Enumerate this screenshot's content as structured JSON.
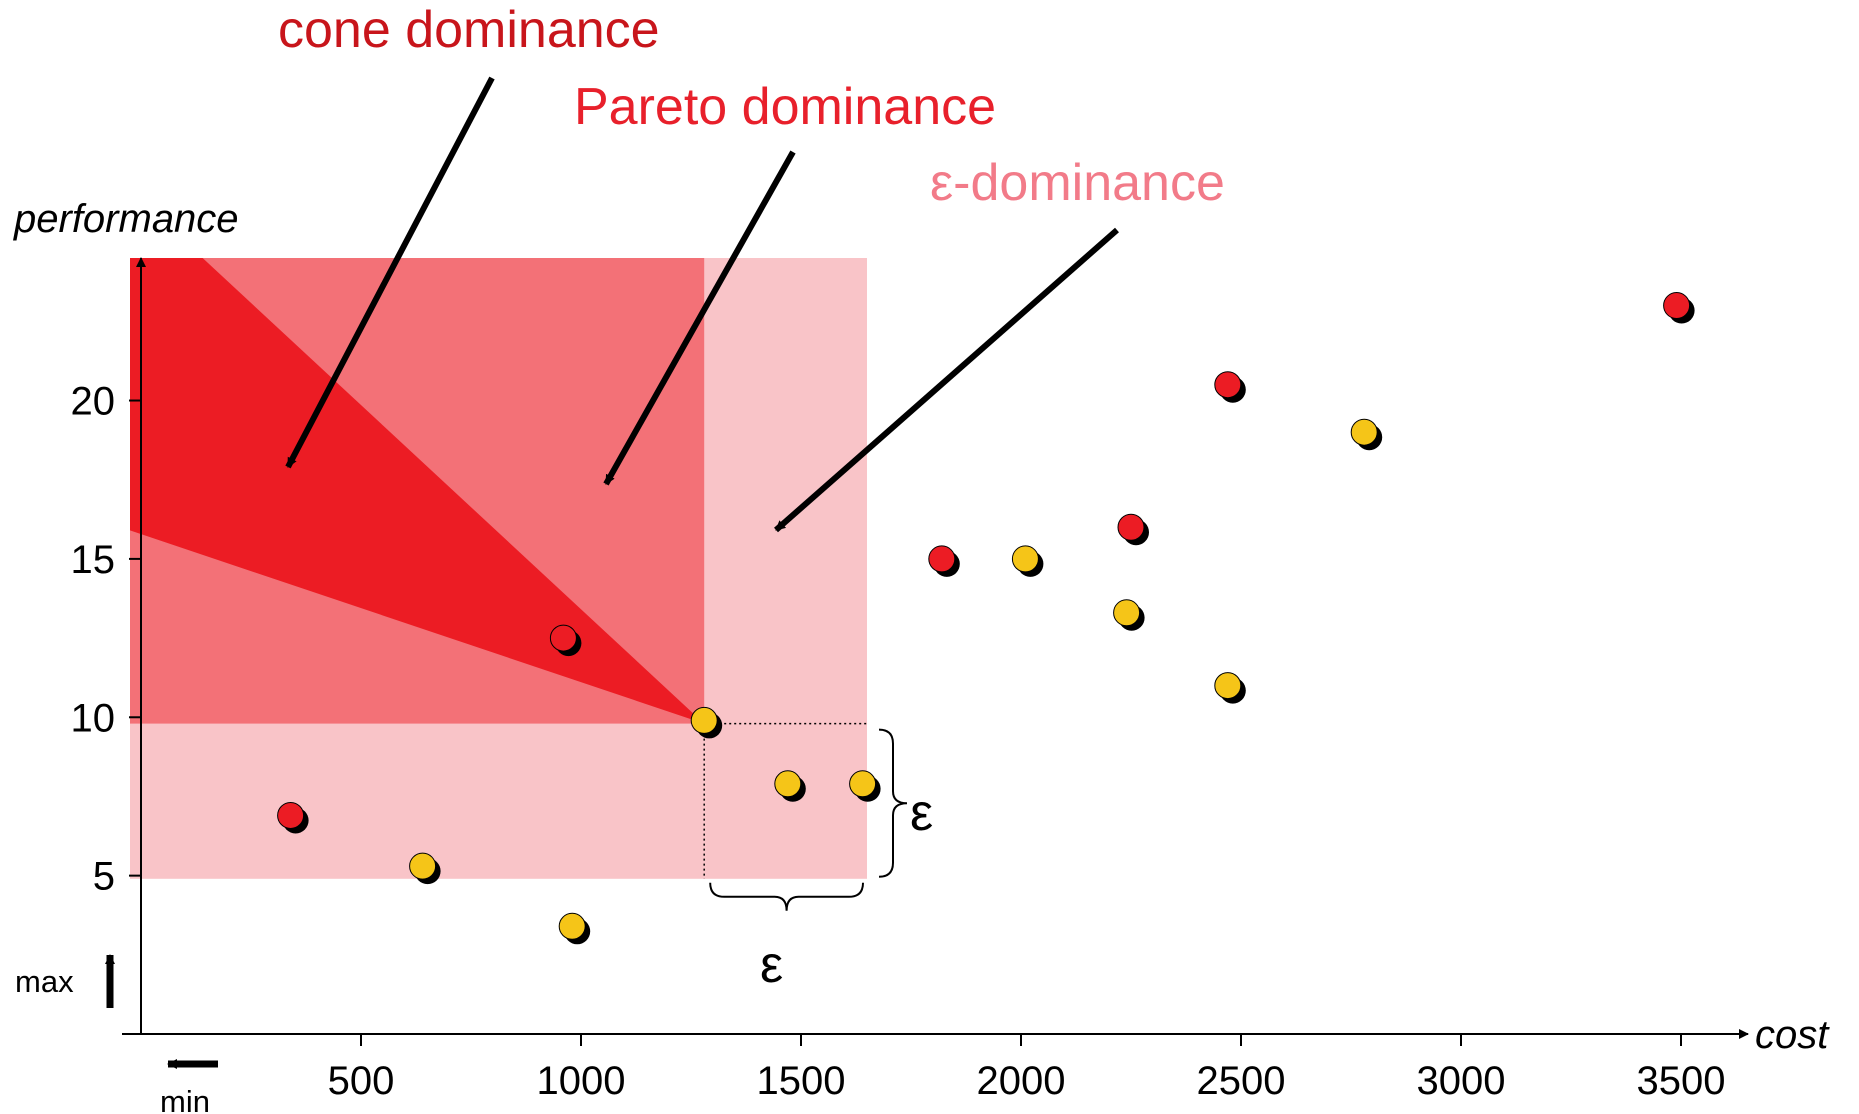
{
  "chart_data": {
    "type": "scatter",
    "title": "",
    "xlabel": "cost",
    "ylabel": "performance",
    "x_direction_label": "min",
    "y_direction_label": "max",
    "xlim": [
      -25,
      3725
    ],
    "ylim": [
      0,
      24.5
    ],
    "xticks": [
      500,
      1000,
      1500,
      2000,
      2500,
      3000,
      3500
    ],
    "yticks": [
      5,
      10,
      15,
      20
    ],
    "grid": false,
    "reference_point": {
      "x": 1280,
      "y": 9.8
    },
    "epsilon_label": "ε",
    "regions": [
      {
        "name": "ε-dominance",
        "color": "#f9c4c8",
        "label_color": "#f27b89",
        "x_range": [
          -25,
          1650
        ],
        "y_range": [
          4.9,
          24.5
        ]
      },
      {
        "name": "Pareto dominance",
        "color": "#f37177",
        "label_color": "#e8202b",
        "x_range": [
          -25,
          1280
        ],
        "y_range": [
          9.8,
          24.5
        ]
      },
      {
        "name": "cone dominance",
        "color": "#ec1c24",
        "label_color": "#c8151b",
        "polygon": [
          [
            -25,
            24.5
          ],
          [
            140,
            24.5
          ],
          [
            1280,
            9.8
          ],
          [
            -25,
            15.9
          ]
        ]
      }
    ],
    "series": [
      {
        "color": "#ec1c24",
        "points": [
          {
            "x": 340,
            "y": 6.9
          },
          {
            "x": 960,
            "y": 12.5
          },
          {
            "x": 1820,
            "y": 15.0
          },
          {
            "x": 2250,
            "y": 16.0
          },
          {
            "x": 2470,
            "y": 20.5
          },
          {
            "x": 3490,
            "y": 23.0
          }
        ]
      },
      {
        "color": "#f5c518",
        "points": [
          {
            "x": 640,
            "y": 5.3
          },
          {
            "x": 980,
            "y": 3.4
          },
          {
            "x": 1280,
            "y": 9.9
          },
          {
            "x": 1470,
            "y": 7.9
          },
          {
            "x": 1640,
            "y": 7.9
          },
          {
            "x": 2010,
            "y": 15.0
          },
          {
            "x": 2240,
            "y": 13.3
          },
          {
            "x": 2470,
            "y": 11.0
          },
          {
            "x": 2780,
            "y": 19.0
          }
        ]
      }
    ]
  }
}
